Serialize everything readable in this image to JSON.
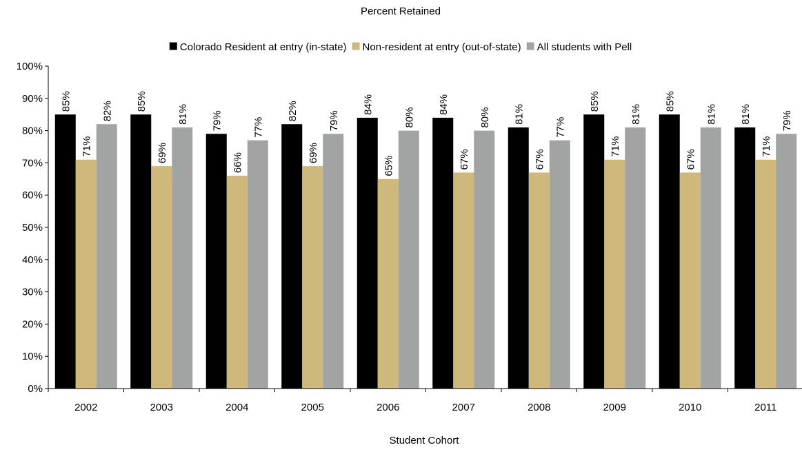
{
  "chart_data": {
    "type": "bar",
    "title": "Percent Retained",
    "xlabel": "Student Cohort",
    "ylabel": "",
    "ylim": [
      0,
      100
    ],
    "yticks": [
      "0%",
      "10%",
      "20%",
      "30%",
      "40%",
      "50%",
      "60%",
      "70%",
      "80%",
      "90%",
      "100%"
    ],
    "categories": [
      "2002",
      "2003",
      "2004",
      "2005",
      "2006",
      "2007",
      "2008",
      "2009",
      "2010",
      "2011"
    ],
    "legend_position": "top",
    "grid": false,
    "series": [
      {
        "name": "Colorado Resident at entry (in-state)",
        "color": "#000000",
        "values": [
          85,
          85,
          79,
          82,
          84,
          84,
          81,
          85,
          85,
          81
        ],
        "labels": [
          "85%",
          "85%",
          "79%",
          "82%",
          "84%",
          "84%",
          "81%",
          "85%",
          "85%",
          "81%"
        ]
      },
      {
        "name": "Non-resident at entry (out-of-state)",
        "color": "#CFB87C",
        "values": [
          71,
          69,
          66,
          69,
          65,
          67,
          67,
          71,
          67,
          71
        ],
        "labels": [
          "71%",
          "69%",
          "66%",
          "69%",
          "65%",
          "67%",
          "67%",
          "71%",
          "67%",
          "71%"
        ]
      },
      {
        "name": "All students with Pell",
        "color": "#A2A4A3",
        "values": [
          82,
          81,
          77,
          79,
          80,
          80,
          77,
          81,
          81,
          79
        ],
        "labels": [
          "82%",
          "81%",
          "77%",
          "79%",
          "80%",
          "80%",
          "77%",
          "81%",
          "81%",
          "79%"
        ]
      }
    ]
  }
}
